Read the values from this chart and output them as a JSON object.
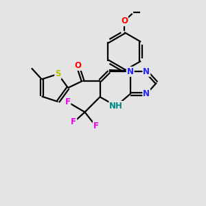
{
  "background_color": "#e4e4e4",
  "bond_color": "#000000",
  "bond_width": 1.6,
  "atom_colors": {
    "C": "#000000",
    "N": "#2222ff",
    "O": "#ff0000",
    "S": "#bbbb00",
    "F": "#ee00ee",
    "H": "#008888"
  },
  "font_size": 8.5,
  "font_size_small": 7.5
}
